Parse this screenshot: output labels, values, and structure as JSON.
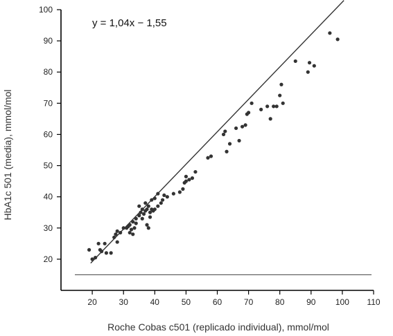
{
  "chart_data": {
    "type": "scatter",
    "title": "",
    "annotation": "y = 1,04x − 1,55",
    "xlabel": "Roche Cobas c501 (replicado individual), mmol/mol",
    "ylabel": "HbA1c 501 (media), mmol/mol",
    "xlim": [
      10,
      110
    ],
    "ylim": [
      10,
      100
    ],
    "xticks": [
      20,
      30,
      40,
      50,
      60,
      70,
      80,
      90,
      100,
      110
    ],
    "yticks": [
      20,
      30,
      40,
      50,
      60,
      70,
      80,
      90,
      100
    ],
    "grid": false,
    "colors": {
      "points": "#333333",
      "line": "#333333",
      "axis": "#000000",
      "reference": "#555555"
    },
    "regression": {
      "slope": 1.04,
      "intercept": -1.55,
      "x_range": [
        19.5,
        100.5
      ]
    },
    "reference_line": {
      "y": 15
    },
    "points": [
      [
        19,
        23
      ],
      [
        20,
        20
      ],
      [
        21,
        20.5
      ],
      [
        22,
        25
      ],
      [
        22.5,
        23
      ],
      [
        23,
        22.5
      ],
      [
        24,
        25
      ],
      [
        24.5,
        22
      ],
      [
        26,
        22
      ],
      [
        27,
        27
      ],
      [
        27.5,
        28
      ],
      [
        28,
        25.5
      ],
      [
        28,
        29
      ],
      [
        29,
        28.5
      ],
      [
        30,
        30
      ],
      [
        31,
        30
      ],
      [
        31.5,
        30.5
      ],
      [
        32,
        31
      ],
      [
        32,
        28.5
      ],
      [
        32.5,
        29.5
      ],
      [
        33,
        32
      ],
      [
        33,
        28
      ],
      [
        33.5,
        30
      ],
      [
        34,
        33
      ],
      [
        34,
        31.5
      ],
      [
        35,
        34
      ],
      [
        35,
        37
      ],
      [
        35.5,
        35
      ],
      [
        36,
        36
      ],
      [
        36,
        33
      ],
      [
        36.5,
        34.5
      ],
      [
        37,
        35.5
      ],
      [
        37,
        38
      ],
      [
        37.5,
        36
      ],
      [
        37.5,
        31
      ],
      [
        38,
        37
      ],
      [
        38,
        30
      ],
      [
        38.5,
        35
      ],
      [
        38.5,
        33.5
      ],
      [
        39,
        36
      ],
      [
        39,
        39
      ],
      [
        39.5,
        35.5
      ],
      [
        40,
        36
      ],
      [
        40,
        39.5
      ],
      [
        41,
        37
      ],
      [
        41,
        41
      ],
      [
        42,
        38
      ],
      [
        42.5,
        39
      ],
      [
        43,
        40.5
      ],
      [
        44,
        40
      ],
      [
        46,
        41
      ],
      [
        48,
        41.5
      ],
      [
        49,
        42.5
      ],
      [
        49.5,
        44.5
      ],
      [
        50,
        45
      ],
      [
        50,
        46.5
      ],
      [
        51,
        45.5
      ],
      [
        52,
        46
      ],
      [
        53,
        48
      ],
      [
        57,
        52.5
      ],
      [
        58,
        53
      ],
      [
        62,
        60
      ],
      [
        62.5,
        61
      ],
      [
        63,
        54.5
      ],
      [
        64,
        57
      ],
      [
        66,
        62
      ],
      [
        67,
        58
      ],
      [
        68,
        62.5
      ],
      [
        69,
        63
      ],
      [
        69.5,
        66.5
      ],
      [
        70,
        67
      ],
      [
        71,
        70
      ],
      [
        74,
        68
      ],
      [
        76,
        69
      ],
      [
        77,
        65
      ],
      [
        78,
        69
      ],
      [
        79,
        69
      ],
      [
        80,
        72.5
      ],
      [
        80.5,
        76
      ],
      [
        81,
        70
      ],
      [
        85,
        83.5
      ],
      [
        89,
        80
      ],
      [
        89.5,
        83
      ],
      [
        91,
        82
      ],
      [
        96,
        92.5
      ],
      [
        98.5,
        90.5
      ]
    ]
  }
}
